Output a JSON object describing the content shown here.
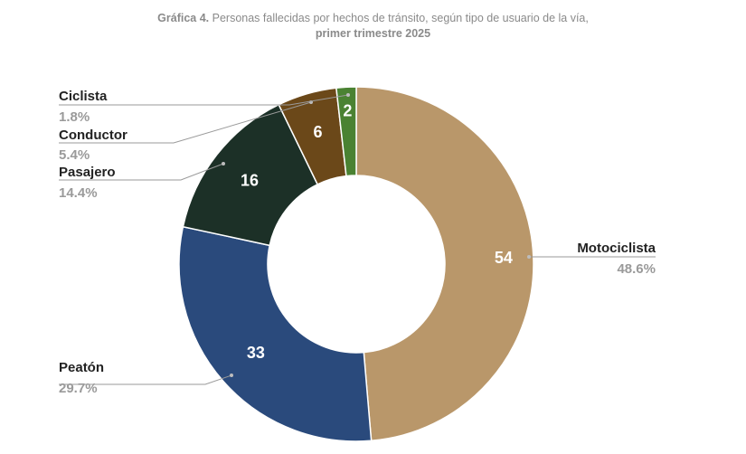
{
  "title": {
    "prefix": "Gráfica 4.",
    "text": " Personas fallecidas por hechos de tránsito, según tipo de usuario de la vía,",
    "line2": "primer trimestre 2025"
  },
  "chart_data": {
    "type": "pie",
    "variant": "donut",
    "series": [
      {
        "name": "Motociclista",
        "value": 54,
        "percent": "48.6%",
        "color": "#b9976a"
      },
      {
        "name": "Peatón",
        "value": 33,
        "percent": "29.7%",
        "color": "#2a4a7c"
      },
      {
        "name": "Pasajero",
        "value": 16,
        "percent": "14.4%",
        "color": "#1c3027"
      },
      {
        "name": "Conductor",
        "value": 6,
        "percent": "5.4%",
        "color": "#6b4819"
      },
      {
        "name": "Ciclista",
        "value": 2,
        "percent": "1.8%",
        "color": "#4a8232"
      }
    ],
    "start": "12 o'clock",
    "direction": "clockwise",
    "legend": "callout labels"
  }
}
